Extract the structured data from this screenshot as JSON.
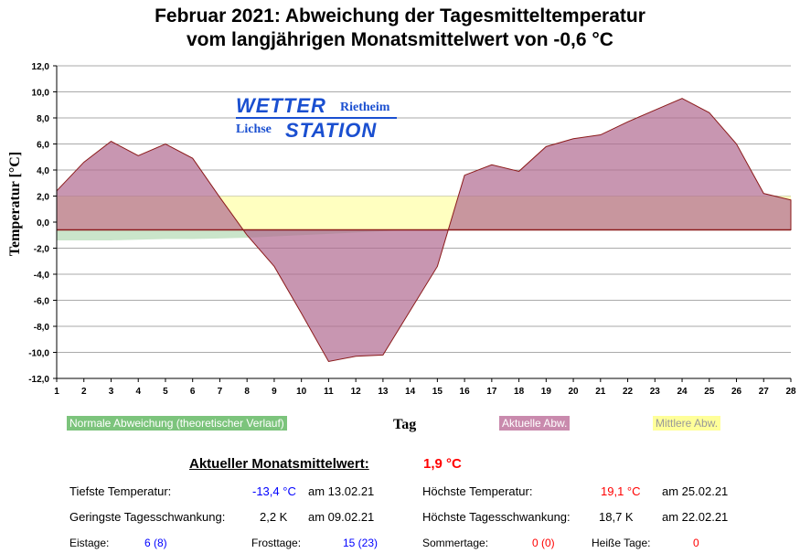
{
  "chart_data": {
    "type": "area",
    "title_line1": "Februar 2021: Abweichung der Tagesmitteltemperatur",
    "title_line2": "vom langjährigen Monatsmittelwert von -0,6 °C",
    "xlabel": "Tag",
    "ylabel": "Temperatur [°C]",
    "ylim": [
      -12,
      12
    ],
    "yticks": [
      "12,0",
      "10,0",
      "8,0",
      "6,0",
      "4,0",
      "2,0",
      "0,0",
      "-2,0",
      "-4,0",
      "-6,0",
      "-8,0",
      "-10,0",
      "-12,0"
    ],
    "x": [
      1,
      2,
      3,
      4,
      5,
      6,
      7,
      8,
      9,
      10,
      11,
      12,
      13,
      14,
      15,
      16,
      17,
      18,
      19,
      20,
      21,
      22,
      23,
      24,
      25,
      26,
      27,
      28
    ],
    "baseline": -0.6,
    "series": [
      {
        "name": "Aktuelle Abw.",
        "color": "#b06a90",
        "values": [
          2.4,
          4.6,
          6.2,
          5.1,
          6.0,
          4.9,
          1.9,
          -1.0,
          -3.4,
          -7.0,
          -10.7,
          -10.3,
          -10.2,
          -6.8,
          -3.4,
          3.6,
          4.4,
          3.9,
          5.8,
          6.4,
          6.7,
          7.7,
          8.6,
          9.5,
          8.4,
          6.0,
          2.2,
          1.7
        ]
      },
      {
        "name": "Mittlere Abw.",
        "color": "#ffffc0",
        "value": 2.0
      },
      {
        "name": "Normale Abweichung (theoretischer Verlauf)",
        "color": "#b8dcb8",
        "values": [
          -1.4,
          -1.4,
          -1.4,
          -1.35,
          -1.3,
          -1.3,
          -1.25,
          -1.2,
          -1.1,
          -1.0,
          -0.9,
          -0.8,
          -0.7,
          -0.6,
          -0.55,
          -0.5,
          -0.4,
          -0.3,
          -0.2,
          -0.1,
          0.0,
          0.1,
          0.2,
          0.3,
          0.4,
          0.5,
          0.6,
          0.7
        ]
      }
    ],
    "legend": [
      "Normale Abweichung (theoretischer Verlauf)",
      "Aktuelle Abw.",
      "Mittlere Abw."
    ],
    "grid": true
  },
  "logo": {
    "w1": "WETTER",
    "w2": "Rietheim",
    "w3": "Lichse",
    "w4": "STATION"
  },
  "stats": {
    "mean_label": "Aktueller Monatsmittelwert:",
    "mean_value": "1,9 °C",
    "min_label": "Tiefste Temperatur:",
    "min_value": "-13,4 °C",
    "min_date": "am 13.02.21",
    "max_label": "Höchste Temperatur:",
    "max_value": "19,1 °C",
    "max_date": "am 25.02.21",
    "minrange_label": "Geringste Tagesschwankung:",
    "minrange_value": "2,2 K",
    "minrange_date": "am 09.02.21",
    "maxrange_label": "Höchste Tagesschwankung:",
    "maxrange_value": "18,7 K",
    "maxrange_date": "am 22.02.21",
    "eis_label": "Eistage:",
    "eis_value": "6 (8)",
    "frost_label": "Frosttage:",
    "frost_value": "15 (23)",
    "sommer_label": "Sommertage:",
    "sommer_value": "0 (0)",
    "heiss_label": "Heiße Tage:",
    "heiss_value": "0"
  }
}
